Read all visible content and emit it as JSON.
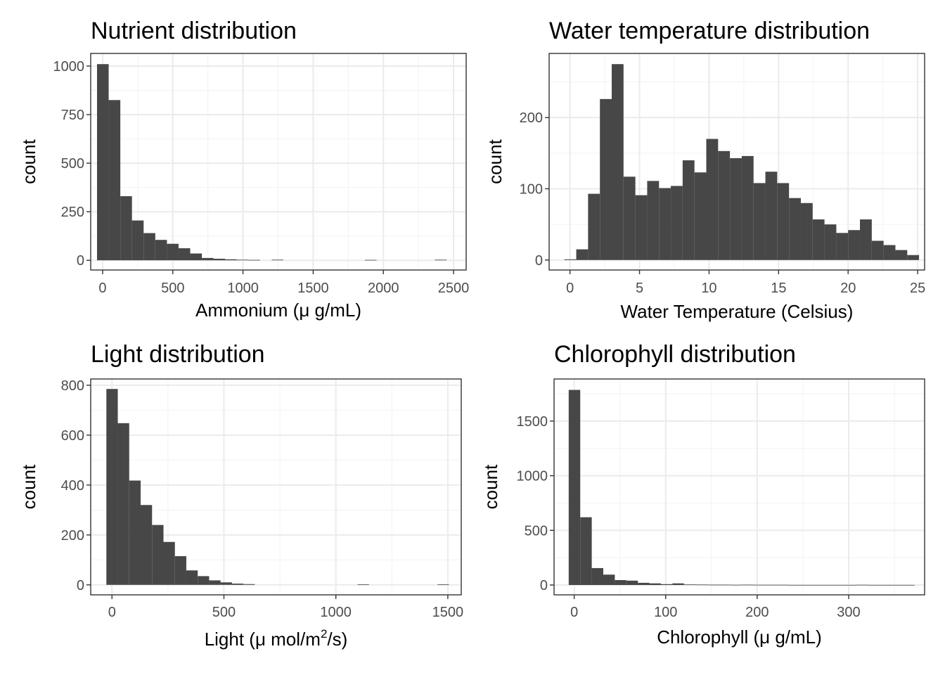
{
  "chart_data": [
    {
      "type": "histogram",
      "title": "Nutrient distribution",
      "xlabel": "Ammonium (μ g/mL)",
      "ylabel": "count",
      "xlim": [
        -85,
        2590
      ],
      "ylim": [
        -50,
        1065
      ],
      "xticks": [
        0,
        500,
        1000,
        1500,
        2000,
        2500
      ],
      "yticks": [
        0,
        250,
        500,
        750,
        1000
      ],
      "bin_start": -40,
      "bin_width": 83,
      "counts": [
        1010,
        825,
        330,
        205,
        140,
        105,
        85,
        62,
        35,
        12,
        8,
        5,
        3,
        2,
        0,
        3,
        0,
        0,
        0,
        0,
        0,
        0,
        0,
        2,
        0,
        0,
        0,
        0,
        0,
        3
      ],
      "grid": true
    },
    {
      "type": "histogram",
      "title": "Water temperature distribution",
      "xlabel": "Water Temperature (Celsius)",
      "ylabel": "count",
      "xlim": [
        -1.5,
        25.5
      ],
      "ylim": [
        -14,
        290
      ],
      "xticks": [
        0,
        5,
        10,
        15,
        20,
        25
      ],
      "yticks": [
        0,
        100,
        200
      ],
      "bin_start": -0.4,
      "bin_width": 0.85,
      "counts": [
        1,
        15,
        93,
        226,
        275,
        117,
        91,
        111,
        101,
        104,
        140,
        123,
        170,
        153,
        143,
        146,
        108,
        124,
        108,
        87,
        80,
        57,
        50,
        38,
        42,
        57,
        27,
        21,
        14,
        7
      ],
      "grid": true
    },
    {
      "type": "histogram",
      "title": "Light distribution",
      "xlabel_main": "Light (μ mol/m",
      "xlabel_sup": "2",
      "xlabel_end": "/s)",
      "ylabel": "count",
      "xlim": [
        -95,
        1560
      ],
      "ylim": [
        -40,
        825
      ],
      "xticks": [
        0,
        500,
        1000,
        1500
      ],
      "yticks": [
        0,
        200,
        400,
        600,
        800
      ],
      "bin_start": -25,
      "bin_width": 51,
      "counts": [
        785,
        648,
        418,
        320,
        240,
        172,
        115,
        58,
        35,
        18,
        10,
        5,
        3,
        0,
        0,
        0,
        0,
        0,
        0,
        0,
        0,
        0,
        2,
        0,
        0,
        0,
        0,
        0,
        0,
        2
      ],
      "grid": true
    },
    {
      "type": "histogram",
      "title": "Chlorophyll distribution",
      "xlabel": "Chlorophyll (μ g/mL)",
      "ylabel": "count",
      "xlim": [
        -22,
        383
      ],
      "ylim": [
        -90,
        1885
      ],
      "xticks": [
        0,
        100,
        200,
        300
      ],
      "yticks": [
        0,
        500,
        1000,
        1500
      ],
      "bin_start": -6,
      "bin_width": 12.6,
      "counts": [
        1785,
        620,
        155,
        95,
        45,
        40,
        20,
        15,
        8,
        15,
        5,
        4,
        3,
        3,
        2,
        3,
        2,
        2,
        2,
        1,
        1,
        1,
        1,
        1,
        1,
        2,
        1,
        1,
        1,
        1
      ],
      "grid": true
    }
  ]
}
